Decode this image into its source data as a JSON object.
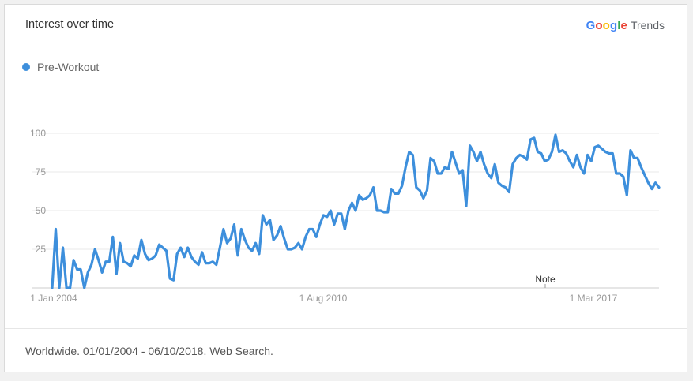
{
  "header": {
    "title": "Interest over time"
  },
  "brand": {
    "google": [
      "G",
      "o",
      "o",
      "g",
      "l",
      "e"
    ],
    "trends": "Trends",
    "colors": [
      "#4285f4",
      "#ea4335",
      "#fbbc05",
      "#4285f4",
      "#34a853",
      "#ea4335"
    ]
  },
  "footer": {
    "text": "Worldwide. 01/01/2004 - 06/10/2018. Web Search."
  },
  "chart_data": {
    "type": "line",
    "title": "Interest over time",
    "xlabel": "",
    "ylabel": "",
    "ylim": [
      0,
      100
    ],
    "yticks": [
      "100",
      "75",
      "50",
      "25"
    ],
    "xticks": [
      "1 Jan 2004",
      "1 Aug 2010",
      "1 Mar 2017"
    ],
    "annotation": "Note",
    "grid": true,
    "legend_position": "top-left",
    "series": [
      {
        "name": "Pre-Workout",
        "color": "#3d8fdc",
        "values": [
          0,
          38,
          0,
          26,
          0,
          0,
          18,
          12,
          12,
          0,
          10,
          15,
          25,
          18,
          10,
          17,
          17,
          33,
          9,
          29,
          17,
          16,
          14,
          21,
          19,
          31,
          22,
          18,
          19,
          21,
          28,
          26,
          24,
          6,
          5,
          22,
          26,
          20,
          26,
          20,
          17,
          15,
          23,
          16,
          16,
          17,
          15,
          26,
          38,
          29,
          32,
          41,
          21,
          38,
          31,
          26,
          24,
          29,
          22,
          47,
          41,
          44,
          31,
          34,
          40,
          32,
          25,
          25,
          26,
          29,
          25,
          33,
          38,
          38,
          33,
          41,
          47,
          46,
          50,
          41,
          48,
          48,
          38,
          50,
          55,
          50,
          60,
          57,
          58,
          60,
          65,
          50,
          50,
          49,
          49,
          64,
          61,
          61,
          66,
          78,
          88,
          86,
          65,
          63,
          58,
          63,
          84,
          82,
          74,
          74,
          78,
          77,
          88,
          81,
          74,
          76,
          53,
          92,
          88,
          82,
          88,
          80,
          74,
          71,
          80,
          68,
          66,
          65,
          62,
          80,
          84,
          86,
          85,
          83,
          96,
          97,
          88,
          87,
          82,
          83,
          88,
          99,
          88,
          89,
          87,
          82,
          78,
          86,
          78,
          74,
          86,
          82,
          91,
          92,
          90,
          88,
          87,
          87,
          74,
          74,
          72,
          60,
          89,
          84,
          84,
          78,
          73,
          68,
          64,
          68,
          65
        ]
      }
    ]
  }
}
